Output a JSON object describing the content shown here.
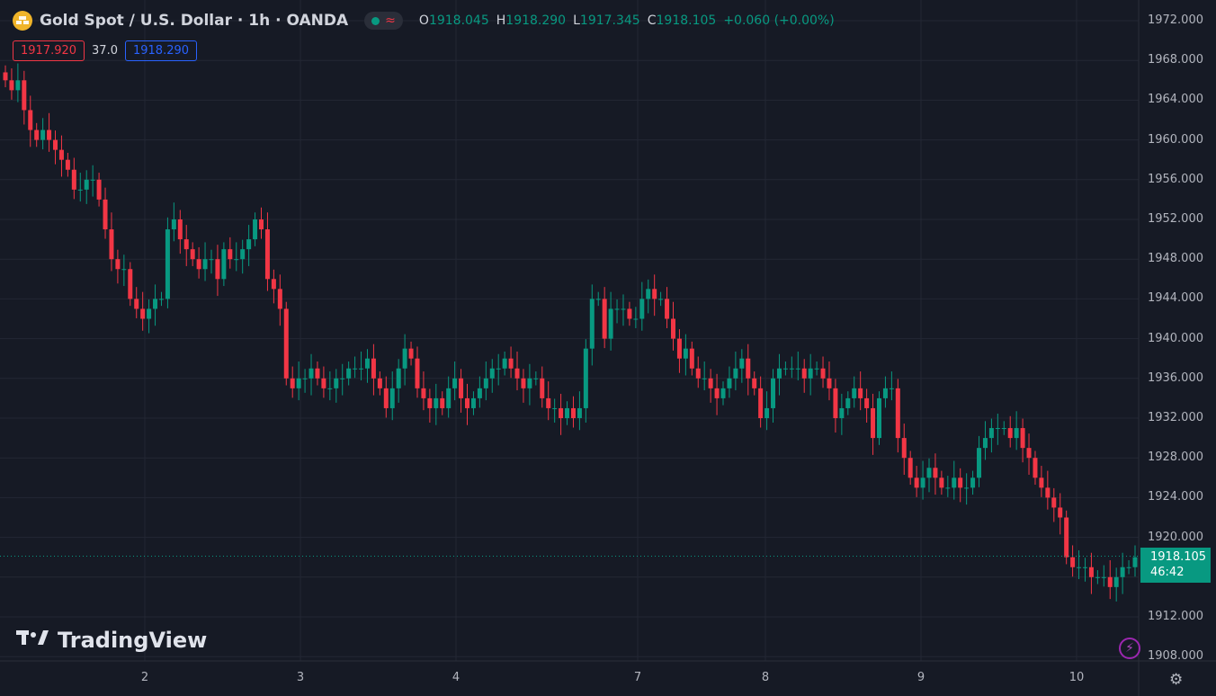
{
  "header": {
    "title": "Gold Spot / U.S. Dollar · 1h · OANDA",
    "o_label": "O",
    "o_value": "1918.045",
    "h_label": "H",
    "h_value": "1918.290",
    "l_label": "L",
    "l_value": "1917.345",
    "c_label": "C",
    "c_value": "1918.105",
    "change": "+0.060 (+0.00%)"
  },
  "trade": {
    "sell_price": "1917.920",
    "spread": "37.0",
    "buy_price": "1918.290"
  },
  "current": {
    "price": "1918.105",
    "countdown": "46:42"
  },
  "watermark": "TradingView",
  "colors": {
    "background": "#161a25",
    "up": "#089981",
    "down": "#f23645",
    "grid": "#232734",
    "gold": "#f0b429"
  },
  "icons": [
    "gold-coin-icon",
    "lightning-icon",
    "settings-icon"
  ],
  "chart_data": {
    "type": "candlestick",
    "y_ticks": [
      "1972.000",
      "1968.000",
      "1964.000",
      "1960.000",
      "1956.000",
      "1952.000",
      "1948.000",
      "1944.000",
      "1940.000",
      "1936.000",
      "1932.000",
      "1928.000",
      "1924.000",
      "1920.000",
      "1916.000",
      "1912.000",
      "1908.000"
    ],
    "x_ticks": [
      "2",
      "3",
      "4",
      "7",
      "8",
      "9",
      "10"
    ],
    "ylim": [
      1906,
      1974
    ],
    "close_series": [
      1966,
      1965,
      1966,
      1963,
      1961,
      1960,
      1961,
      1960,
      1959,
      1958,
      1957,
      1955,
      1955,
      1956,
      1956,
      1954,
      1951,
      1948,
      1947,
      1947,
      1944,
      1943,
      1942,
      1943,
      1944,
      1944,
      1951,
      1952,
      1950,
      1949,
      1948,
      1947,
      1948,
      1948,
      1946,
      1949,
      1948,
      1948,
      1949,
      1950,
      1952,
      1951,
      1946,
      1945,
      1943,
      1936,
      1935,
      1936,
      1936,
      1937,
      1936,
      1935,
      1935,
      1936,
      1936,
      1937,
      1937,
      1937,
      1938,
      1936,
      1935,
      1933,
      1935,
      1937,
      1939,
      1938,
      1935,
      1934,
      1933,
      1934,
      1933,
      1935,
      1936,
      1934,
      1933,
      1934,
      1935,
      1936,
      1937,
      1937,
      1938,
      1937,
      1936,
      1935,
      1936,
      1936,
      1934,
      1933,
      1933,
      1932,
      1933,
      1932,
      1933,
      1939,
      1944,
      1944,
      1940,
      1943,
      1943,
      1943,
      1942,
      1942,
      1944,
      1945,
      1944,
      1944,
      1942,
      1940,
      1938,
      1939,
      1937,
      1936,
      1936,
      1935,
      1934,
      1935,
      1936,
      1937,
      1938,
      1936,
      1935,
      1932,
      1933,
      1936,
      1937,
      1937,
      1937,
      1937,
      1936,
      1937,
      1937,
      1936,
      1935,
      1932,
      1933,
      1934,
      1935,
      1934,
      1933,
      1930,
      1934,
      1935,
      1935,
      1930,
      1928,
      1926,
      1925,
      1926,
      1927,
      1926,
      1925,
      1925,
      1926,
      1925,
      1925,
      1926,
      1929,
      1930,
      1931,
      1931,
      1931,
      1930,
      1931,
      1929,
      1928,
      1926,
      1925,
      1924,
      1923,
      1922,
      1918,
      1917,
      1917,
      1917,
      1916,
      1916,
      1916,
      1915,
      1916,
      1917,
      1917,
      1918
    ]
  }
}
